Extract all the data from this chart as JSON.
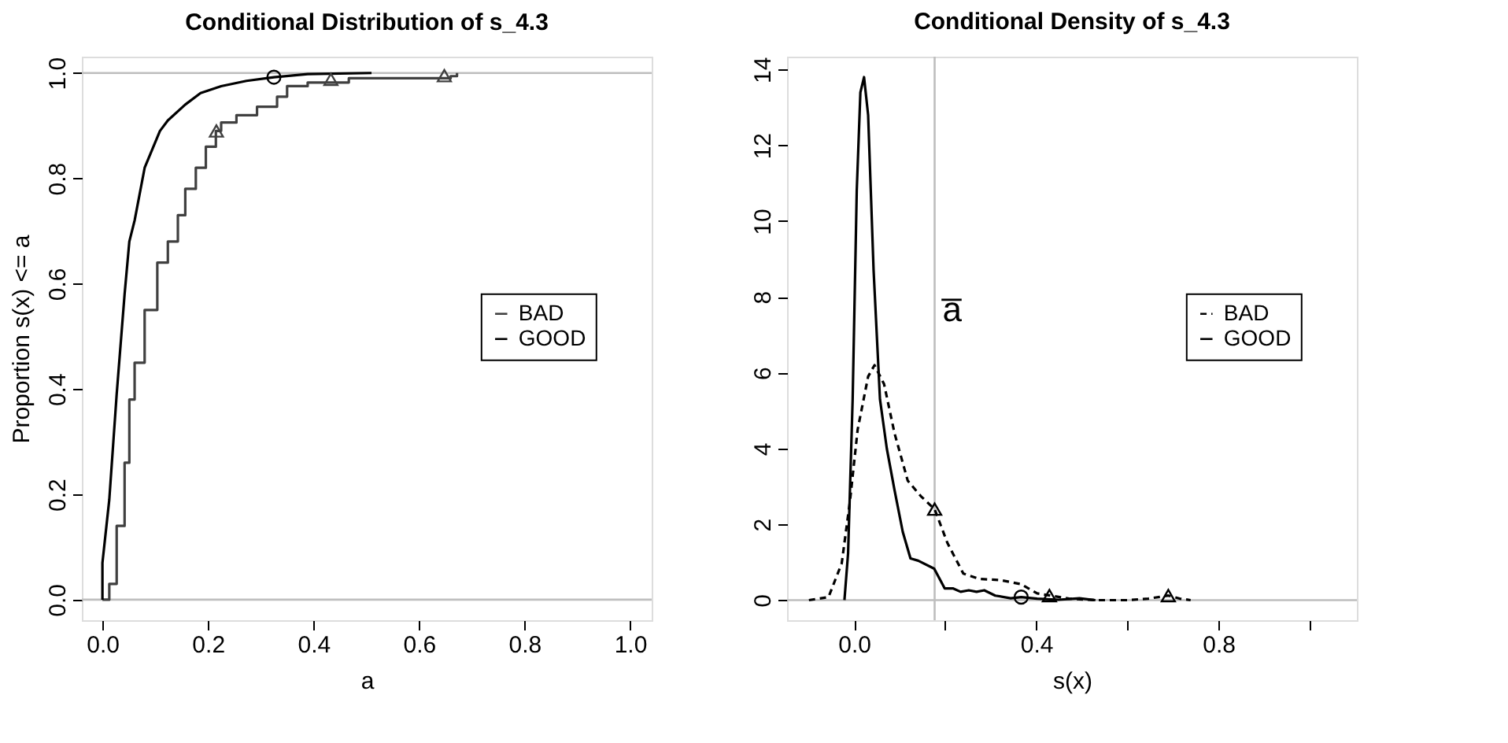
{
  "chart_data": [
    {
      "type": "step",
      "title": "Conditional Distribution of s_4.3",
      "xlabel": "a",
      "ylabel": "Proportion  s(x) <= a",
      "xlim": [
        -0.039,
        1.041
      ],
      "ylim": [
        -0.039,
        1.031
      ],
      "xticks": [
        {
          "value": 0,
          "label": "0.0"
        },
        0.2,
        0.4,
        0.6,
        0.8,
        {
          "value": 1,
          "label": "1.0"
        }
      ],
      "yticks": [
        {
          "value": 0,
          "label": "0.0"
        },
        0.2,
        0.4,
        0.6,
        0.8,
        {
          "value": 1,
          "label": "1.0"
        }
      ],
      "grid": false,
      "legend": "right",
      "ref_lines": [
        {
          "axis": "y",
          "value": 0,
          "color": "#bebebe"
        },
        {
          "axis": "y",
          "value": 1,
          "color": "#bebebe"
        }
      ],
      "series": [
        {
          "name": "BAD",
          "color": "#404040",
          "line_style": "solid",
          "x": [
            0,
            0.013,
            0.027,
            0.042,
            0.051,
            0.061,
            0.08,
            0.104,
            0.124,
            0.143,
            0.157,
            0.177,
            0.196,
            0.215,
            0.225,
            0.254,
            0.293,
            0.331,
            0.35,
            0.389,
            0.467,
            0.66,
            0.672
          ],
          "values": [
            0,
            0.03,
            0.14,
            0.26,
            0.38,
            0.45,
            0.55,
            0.64,
            0.68,
            0.73,
            0.78,
            0.82,
            0.86,
            0.89,
            0.906,
            0.92,
            0.936,
            0.955,
            0.975,
            0.982,
            0.99,
            0.994,
            1.0
          ]
        },
        {
          "name": "GOOD",
          "type": "line",
          "color": "#000000",
          "line_style": "solid",
          "x": [
            0,
            0,
            0.013,
            0.027,
            0.042,
            0.051,
            0.061,
            0.08,
            0.109,
            0.124,
            0.157,
            0.186,
            0.225,
            0.273,
            0.325,
            0.389,
            0.51
          ],
          "values": [
            0,
            0.07,
            0.19,
            0.39,
            0.58,
            0.68,
            0.72,
            0.82,
            0.89,
            0.91,
            0.94,
            0.962,
            0.975,
            0.985,
            0.992,
            0.998,
            1.0
          ]
        },
        {
          "type": "scatter",
          "color": "#404040",
          "marker": "triangle",
          "x": [
            0.216,
            0.433,
            0.648
          ],
          "values": [
            0.89,
            0.988,
            0.995
          ]
        },
        {
          "type": "scatter",
          "color": "#000000",
          "marker": "circle",
          "x": [
            0.325
          ],
          "values": [
            0.992
          ]
        }
      ]
    },
    {
      "type": "line",
      "title": "Conditional Density of s_4.3",
      "xlabel": "s(x)",
      "xlim": [
        -0.147,
        1.104
      ],
      "ylim": [
        -0.53,
        14.34
      ],
      "xticks": [
        {
          "value": 0,
          "label": "0.0"
        },
        {
          "value": 0.2,
          "label": null
        },
        0.4,
        {
          "value": 0.6,
          "label": null
        },
        0.8,
        {
          "value": 1,
          "label": null
        }
      ],
      "yticks": [
        0,
        2,
        4,
        6,
        8,
        10,
        12,
        14
      ],
      "grid": false,
      "legend": "right",
      "ref_lines": [
        {
          "axis": "y",
          "value": 0,
          "color": "#bebebe"
        },
        {
          "axis": "x",
          "value": 0.177,
          "label": "a̅",
          "color": "#bebebe"
        }
      ],
      "series": [
        {
          "name": "BAD",
          "color": "#000000",
          "line_style": "dashed",
          "x": [
            -0.099,
            -0.056,
            -0.027,
            -0.009,
            0.008,
            0.031,
            0.045,
            0.066,
            0.089,
            0.118,
            0.147,
            0.177,
            0.205,
            0.24,
            0.275,
            0.321,
            0.367,
            0.402,
            0.431,
            0.472,
            0.53,
            0.6,
            0.646,
            0.69,
            0.715,
            0.739
          ],
          "values": [
            0,
            0.08,
            0.97,
            2.6,
            4.5,
            5.9,
            6.2,
            5.7,
            4.4,
            3.15,
            2.74,
            2.4,
            1.51,
            0.7,
            0.56,
            0.53,
            0.42,
            0.18,
            0.12,
            0.04,
            0,
            0,
            0.04,
            0.12,
            0.04,
            0
          ]
        },
        {
          "name": "GOOD",
          "color": "#000000",
          "line_style": "solid",
          "x": [
            -0.021,
            -0.013,
            -0.003,
            0.006,
            0.014,
            0.022,
            0.031,
            0.043,
            0.057,
            0.072,
            0.089,
            0.107,
            0.124,
            0.141,
            0.176,
            0.188,
            0.199,
            0.217,
            0.234,
            0.252,
            0.269,
            0.286,
            0.31,
            0.344,
            0.367,
            0.402,
            0.449,
            0.495,
            0.53
          ],
          "values": [
            0,
            1.24,
            5.3,
            10.8,
            13.4,
            13.8,
            12.8,
            8.7,
            5.3,
            4.0,
            2.9,
            1.8,
            1.1,
            1.04,
            0.83,
            0.56,
            0.31,
            0.31,
            0.22,
            0.26,
            0.22,
            0.26,
            0.12,
            0.05,
            0.08,
            0.04,
            0.01,
            0.05,
            0
          ]
        },
        {
          "type": "scatter",
          "color": "#000000",
          "marker": "triangle",
          "x": [
            0.177,
            0.429,
            0.69
          ],
          "values": [
            2.4,
            0.12,
            0.12
          ]
        },
        {
          "type": "scatter",
          "color": "#000000",
          "marker": "circle",
          "x": [
            0.367
          ],
          "values": [
            0.08
          ]
        }
      ]
    }
  ]
}
